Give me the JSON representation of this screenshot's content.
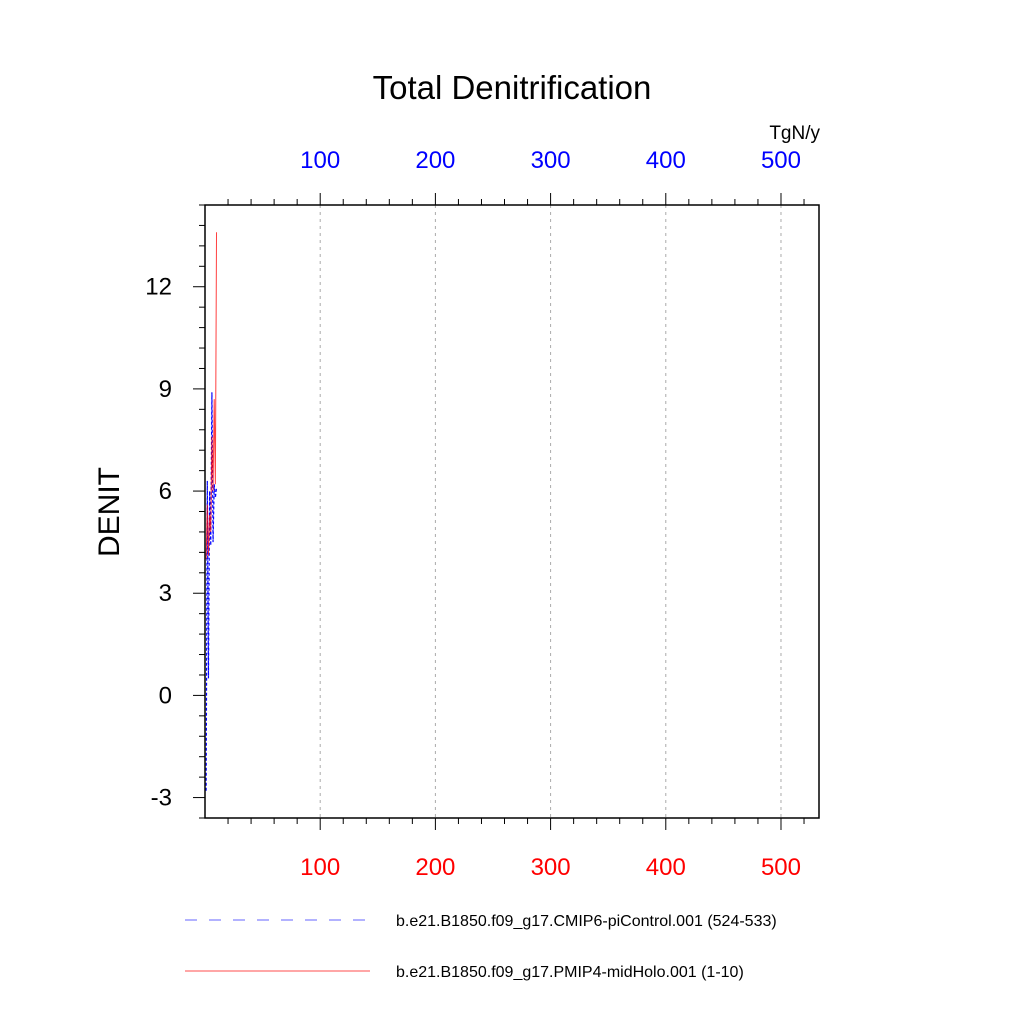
{
  "chart_data": {
    "type": "line",
    "title": "Total Denitrification",
    "units": "TgN/y",
    "ylabel": "DENIT",
    "xlim": [
      0,
      533
    ],
    "ylim": [
      -3.6,
      14.4
    ],
    "yticks": [
      -3,
      0,
      3,
      6,
      9,
      12
    ],
    "xticks": [
      100,
      200,
      300,
      400,
      500
    ],
    "xtick_labels": [
      "100",
      "200",
      "300",
      "400",
      "500"
    ],
    "ytick_labels": [
      "-3",
      "0",
      "3",
      "6",
      "9",
      "12"
    ],
    "top_axis_color": "#0000ff",
    "bottom_axis_color": "#ff0000",
    "grid": "vertical dashed at x ticks",
    "series": [
      {
        "name": "b.e21.B1850.f09_g17.CMIP6-piControl.001 (524-533)",
        "color": "#0000ff",
        "dash": "dashed",
        "axis": "top",
        "x": [
          1,
          2,
          3,
          4,
          5,
          6,
          7,
          8,
          9,
          10
        ],
        "y": [
          -2.8,
          6.3,
          0.5,
          6.0,
          4.4,
          8.9,
          4.5,
          6.2,
          5.8,
          6.1
        ]
      },
      {
        "name": "b.e21.B1850.f09_g17.PMIP4-midHolo.001 (1-10)",
        "color": "#ff0000",
        "dash": "solid",
        "axis": "bottom",
        "x": [
          1,
          2,
          3,
          4,
          5,
          6,
          7,
          8,
          9,
          10
        ],
        "y": [
          4.0,
          5.6,
          4.1,
          5.3,
          4.8,
          7.6,
          6.0,
          8.7,
          6.2,
          13.6
        ]
      }
    ],
    "legend": [
      {
        "label": "b.e21.B1850.f09_g17.CMIP6-piControl.001 (524-533)",
        "color": "#0000ff",
        "dash": "dashed"
      },
      {
        "label": "b.e21.B1850.f09_g17.PMIP4-midHolo.001 (1-10)",
        "color": "#ff0000",
        "dash": "solid"
      }
    ]
  }
}
